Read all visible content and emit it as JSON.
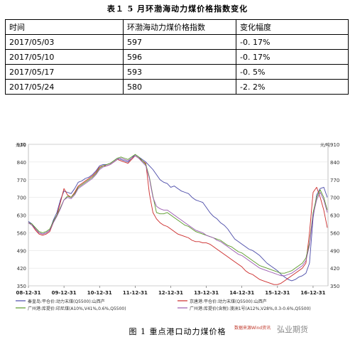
{
  "table": {
    "title": "表１ 5 月环渤海动力煤价格指数变化",
    "headers": [
      "时间",
      "环渤海动力煤价格指数",
      "变化幅度"
    ],
    "rows": [
      [
        "2017/05/03",
        "597",
        "-0. 17%"
      ],
      [
        "2017/05/10",
        "596",
        "-0. 17%"
      ],
      [
        "2017/05/17",
        "593",
        "-0. 5%"
      ],
      [
        "2017/05/24",
        "580",
        "-2. 2%"
      ]
    ]
  },
  "figure_caption": "图 1 重点港口动力煤价格",
  "watermark": "弘业期货",
  "watermark_small": "数据来源Wind资讯",
  "chart_data": {
    "type": "line",
    "left_unit": "元/吨",
    "right_unit": "元/吨",
    "ylim": [
      350,
      910
    ],
    "yticks": [
      350,
      420,
      490,
      560,
      630,
      700,
      770,
      840,
      910
    ],
    "x_ticks": [
      "08-12-31",
      "09-12-31",
      "10-12-31",
      "11-12-31",
      "12-12-31",
      "13-12-31",
      "14-12-31",
      "15-12-31",
      "16-12-31"
    ],
    "x_tick_pos": [
      0,
      1,
      2,
      3,
      4,
      5,
      6,
      7,
      8
    ],
    "xlim": [
      0,
      8.42
    ],
    "series_colors": [
      "#4a4aa8",
      "#cc2a2a",
      "#5a9a2a",
      "#9a5ab0"
    ],
    "series": [
      {
        "name": "秦皇岛:平仓价:动力末煤(Q5500):山西产",
        "x": [
          0,
          0.1,
          0.2,
          0.3,
          0.4,
          0.5,
          0.6,
          0.7,
          0.8,
          0.9,
          1,
          1.1,
          1.2,
          1.3,
          1.4,
          1.5,
          1.6,
          1.7,
          1.8,
          1.9,
          2,
          2.1,
          2.2,
          2.3,
          2.4,
          2.5,
          2.6,
          2.7,
          2.8,
          2.9,
          3,
          3.1,
          3.2,
          3.3,
          3.4,
          3.5,
          3.6,
          3.7,
          3.8,
          3.9,
          4,
          4.1,
          4.2,
          4.3,
          4.4,
          4.5,
          4.6,
          4.7,
          4.8,
          4.9,
          5,
          5.1,
          5.2,
          5.3,
          5.4,
          5.5,
          5.6,
          5.7,
          5.8,
          5.9,
          6,
          6.1,
          6.2,
          6.3,
          6.4,
          6.5,
          6.6,
          6.7,
          6.8,
          6.9,
          7,
          7.1,
          7.2,
          7.3,
          7.4,
          7.5,
          7.6,
          7.7,
          7.8,
          7.9,
          8,
          8.1,
          8.2,
          8.3,
          8.4
        ],
        "values": [
          605,
          595,
          575,
          560,
          555,
          560,
          570,
          610,
          640,
          690,
          725,
          720,
          715,
          735,
          760,
          765,
          775,
          780,
          790,
          805,
          825,
          830,
          830,
          835,
          845,
          855,
          850,
          845,
          840,
          855,
          870,
          860,
          850,
          840,
          825,
          810,
          790,
          770,
          760,
          755,
          740,
          745,
          735,
          725,
          720,
          715,
          700,
          690,
          685,
          680,
          660,
          640,
          625,
          615,
          600,
          590,
          575,
          555,
          535,
          525,
          515,
          505,
          495,
          490,
          480,
          470,
          455,
          440,
          430,
          420,
          410,
          395,
          385,
          375,
          370,
          375,
          385,
          390,
          400,
          440,
          620,
          710,
          735,
          740,
          700
        ]
      },
      {
        "name": "京唐港:平仓价:动力末煤(Q5500):山西产",
        "x": [
          0,
          0.1,
          0.2,
          0.3,
          0.4,
          0.5,
          0.6,
          0.7,
          0.8,
          0.9,
          1,
          1.1,
          1.2,
          1.3,
          1.4,
          1.5,
          1.6,
          1.7,
          1.8,
          1.9,
          2,
          2.1,
          2.2,
          2.3,
          2.4,
          2.5,
          2.6,
          2.7,
          2.8,
          2.9,
          3,
          3.1,
          3.2,
          3.3,
          3.4,
          3.5,
          3.6,
          3.7,
          3.8,
          3.9,
          4,
          4.1,
          4.2,
          4.3,
          4.4,
          4.5,
          4.6,
          4.7,
          4.8,
          4.9,
          5,
          5.1,
          5.2,
          5.3,
          5.4,
          5.5,
          5.6,
          5.7,
          5.8,
          5.9,
          6,
          6.1,
          6.2,
          6.3,
          6.4,
          6.5,
          6.6,
          6.7,
          6.8,
          6.9,
          7,
          7.1,
          7.2,
          7.3,
          7.4,
          7.5,
          7.6,
          7.7,
          7.8,
          7.9,
          8,
          8.1,
          8.2,
          8.3,
          8.4
        ],
        "values": [
          600,
          590,
          570,
          555,
          550,
          555,
          565,
          600,
          630,
          680,
          735,
          710,
          700,
          720,
          745,
          755,
          765,
          775,
          785,
          800,
          820,
          825,
          825,
          830,
          840,
          850,
          845,
          840,
          835,
          850,
          865,
          855,
          845,
          835,
          715,
          640,
          615,
          600,
          590,
          585,
          575,
          565,
          555,
          550,
          545,
          540,
          530,
          525,
          525,
          520,
          520,
          515,
          505,
          495,
          485,
          475,
          465,
          455,
          445,
          435,
          425,
          410,
          400,
          395,
          385,
          375,
          370,
          365,
          360,
          355,
          355,
          360,
          370,
          380,
          390,
          400,
          410,
          420,
          440,
          560,
          720,
          740,
          700,
          650,
          580
        ]
      },
      {
        "name": "广州港:库提价:印尼煤(A10%,V41%,0.6%,Q5500)",
        "x": [
          0,
          0.1,
          0.2,
          0.3,
          0.4,
          0.5,
          0.6,
          0.7,
          0.8,
          0.9,
          1,
          1.1,
          1.2,
          1.3,
          1.4,
          1.5,
          1.6,
          1.7,
          1.8,
          1.9,
          2,
          2.1,
          2.2,
          2.3,
          2.4,
          2.5,
          2.6,
          2.7,
          2.8,
          2.9,
          3,
          3.1,
          3.2,
          3.3,
          3.4,
          3.5,
          3.6,
          3.7,
          3.8,
          3.9,
          4,
          4.1,
          4.2,
          4.3,
          4.4,
          4.5,
          4.6,
          4.7,
          4.8,
          4.9,
          5,
          5.1,
          5.2,
          5.3,
          5.4,
          5.5,
          5.6,
          5.7,
          5.8,
          5.9,
          6,
          6.1,
          6.2,
          6.3,
          6.4,
          6.5,
          6.6,
          6.7,
          6.8,
          6.9,
          7,
          7.1,
          7.2,
          7.3,
          7.4,
          7.5,
          7.6,
          7.7,
          7.8,
          7.9,
          8,
          8.1,
          8.2,
          8.3,
          8.4
        ],
        "values": [
          600,
          595,
          580,
          565,
          560,
          565,
          575,
          605,
          630,
          660,
          690,
          705,
          700,
          715,
          740,
          750,
          760,
          770,
          780,
          795,
          815,
          825,
          830,
          835,
          845,
          855,
          860,
          855,
          850,
          860,
          870,
          860,
          845,
          830,
          780,
          705,
          640,
          635,
          635,
          640,
          630,
          620,
          610,
          600,
          590,
          585,
          575,
          565,
          560,
          555,
          550,
          545,
          540,
          535,
          530,
          520,
          510,
          505,
          495,
          485,
          480,
          470,
          460,
          450,
          440,
          430,
          425,
          420,
          415,
          410,
          405,
          400,
          400,
          405,
          410,
          420,
          430,
          440,
          460,
          520,
          640,
          700,
          730,
          700,
          650
        ]
      },
      {
        "name": "广州港:库提价(含税):澳洲1号(A12%,V28%,0.3-0.6%,Q5500)",
        "x": [
          0,
          0.1,
          0.2,
          0.3,
          0.4,
          0.5,
          0.6,
          0.7,
          0.8,
          0.9,
          1,
          1.1,
          1.2,
          1.3,
          1.4,
          1.5,
          1.6,
          1.7,
          1.8,
          1.9,
          2,
          2.1,
          2.2,
          2.3,
          2.4,
          2.5,
          2.6,
          2.7,
          2.8,
          2.9,
          3,
          3.1,
          3.2,
          3.3,
          3.4,
          3.5,
          3.6,
          3.7,
          3.8,
          3.9,
          4,
          4.1,
          4.2,
          4.3,
          4.4,
          4.5,
          4.6,
          4.7,
          4.8,
          4.9,
          5,
          5.1,
          5.2,
          5.3,
          5.4,
          5.5,
          5.6,
          5.7,
          5.8,
          5.9,
          6,
          6.1,
          6.2,
          6.3,
          6.4,
          6.5,
          6.6,
          6.7,
          6.8,
          6.9,
          7,
          7.1,
          7.2,
          7.3,
          7.4,
          7.5,
          7.6,
          7.7,
          7.8,
          7.9,
          8,
          8.1,
          8.2,
          8.3,
          8.4
        ],
        "values": [
          600,
          590,
          575,
          560,
          555,
          560,
          570,
          600,
          625,
          655,
          690,
          700,
          695,
          710,
          735,
          745,
          755,
          765,
          775,
          790,
          810,
          820,
          825,
          830,
          840,
          850,
          855,
          850,
          845,
          855,
          865,
          855,
          840,
          825,
          775,
          700,
          665,
          655,
          650,
          650,
          640,
          630,
          620,
          610,
          600,
          590,
          580,
          570,
          565,
          560,
          550,
          545,
          540,
          530,
          525,
          515,
          505,
          495,
          485,
          475,
          470,
          460,
          450,
          440,
          430,
          420,
          415,
          410,
          405,
          400,
          395,
          390,
          390,
          395,
          400,
          410,
          420,
          430,
          450,
          510,
          630,
          690,
          720,
          690,
          640
        ]
      }
    ]
  }
}
